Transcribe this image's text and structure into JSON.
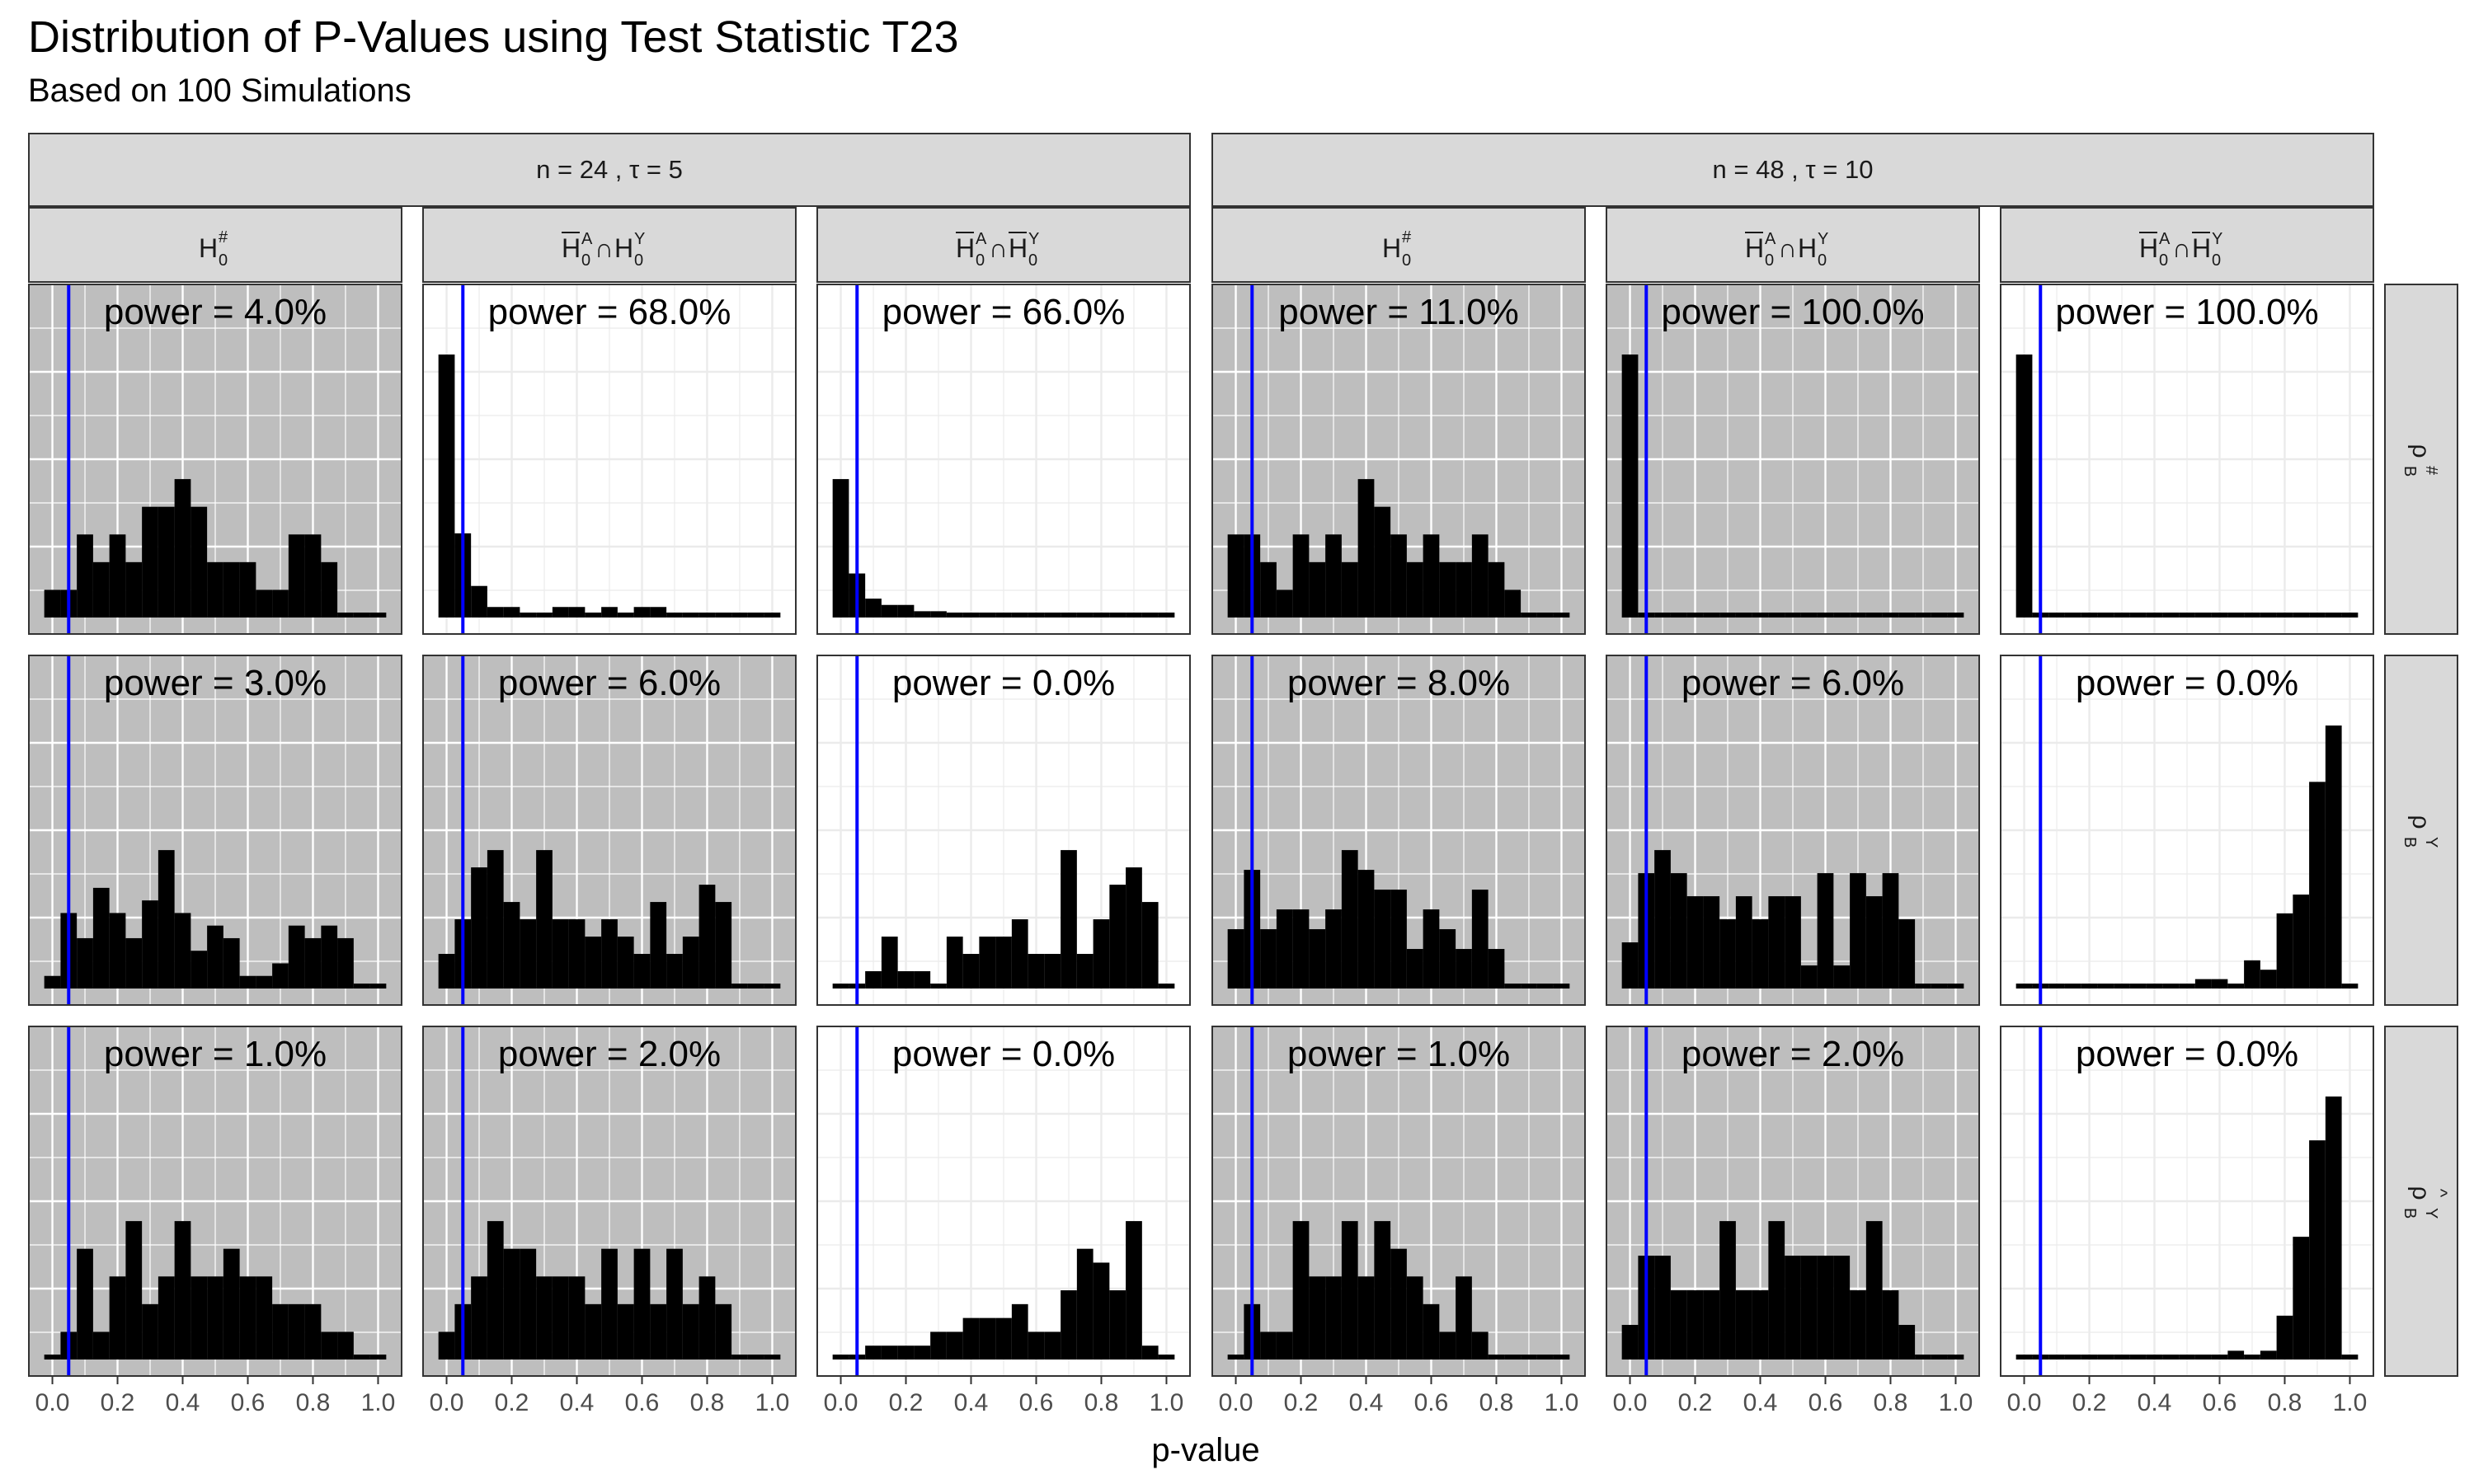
{
  "chart_data": {
    "type": "bar",
    "title": "Distribution of P-Values using Test Statistic T23",
    "subtitle": "Based on 100 Simulations",
    "xlabel": "p-value",
    "xlim": [
      0,
      1
    ],
    "x_ticks": [
      "0.0",
      "0.2",
      "0.4",
      "0.6",
      "0.8",
      "1.0"
    ],
    "bin_width": 0.05,
    "bin_centers": [
      0.0,
      0.05,
      0.1,
      0.15,
      0.2,
      0.25,
      0.3,
      0.35,
      0.4,
      0.45,
      0.5,
      0.55,
      0.6,
      0.65,
      0.7,
      0.75,
      0.8,
      0.85,
      0.9,
      0.95,
      1.0
    ],
    "reference_line": {
      "x": 0.05,
      "color": "#0000ff"
    },
    "bar_color": "#000000",
    "highlight_color": "#bebebe",
    "grid": true,
    "group_headers": [
      {
        "label": "n = 24 , τ = 5"
      },
      {
        "label": "n = 48 , τ = 10"
      }
    ],
    "columns": [
      {
        "group": 0,
        "label": "H0#"
      },
      {
        "group": 0,
        "label": "H̄0A∩H0Y"
      },
      {
        "group": 0,
        "label": "H̄0A∩H̄0Y"
      },
      {
        "group": 1,
        "label": "H0#"
      },
      {
        "group": 1,
        "label": "H̄0A∩H0Y"
      },
      {
        "group": 1,
        "label": "H̄0A∩H̄0Y"
      }
    ],
    "rows": [
      {
        "label": "ρB#"
      },
      {
        "label": "ρBY"
      },
      {
        "label": "ρ̂BY"
      }
    ],
    "panels": [
      {
        "row": 0,
        "col": 0,
        "power": "power = 4.0%",
        "highlight": true,
        "counts": [
          1,
          1,
          3,
          2,
          3,
          2,
          4,
          4,
          5,
          4,
          2,
          2,
          2,
          1,
          1,
          3,
          3,
          2,
          0,
          0,
          0
        ]
      },
      {
        "row": 0,
        "col": 1,
        "power": "power = 68.0%",
        "highlight": false,
        "counts": [
          25,
          8,
          3,
          1,
          1,
          0,
          0,
          1,
          1,
          0,
          1,
          0,
          1,
          1,
          0,
          0,
          0,
          0,
          0,
          0,
          0
        ]
      },
      {
        "row": 0,
        "col": 2,
        "power": "power = 66.0%",
        "highlight": false,
        "counts": [
          22,
          7,
          3,
          2,
          2,
          1,
          1,
          0,
          0,
          0,
          0,
          0,
          0,
          0,
          0,
          0,
          0,
          0,
          0,
          0,
          0
        ]
      },
      {
        "row": 0,
        "col": 3,
        "power": "power = 11.0%",
        "highlight": true,
        "counts": [
          3,
          3,
          2,
          1,
          3,
          2,
          3,
          2,
          5,
          4,
          3,
          2,
          3,
          2,
          2,
          3,
          2,
          1,
          0,
          0,
          0
        ]
      },
      {
        "row": 0,
        "col": 4,
        "power": "power = 100.0%",
        "highlight": true,
        "counts": [
          100,
          0,
          0,
          0,
          0,
          0,
          0,
          0,
          0,
          0,
          0,
          0,
          0,
          0,
          0,
          0,
          0,
          0,
          0,
          0,
          0
        ]
      },
      {
        "row": 0,
        "col": 5,
        "power": "power = 100.0%",
        "highlight": false,
        "counts": [
          100,
          0,
          0,
          0,
          0,
          0,
          0,
          0,
          0,
          0,
          0,
          0,
          0,
          0,
          0,
          0,
          0,
          0,
          0,
          0,
          0
        ]
      },
      {
        "row": 1,
        "col": 0,
        "power": "power = 3.0%",
        "highlight": true,
        "counts": [
          1,
          6,
          4,
          8,
          6,
          4,
          7,
          11,
          6,
          3,
          5,
          4,
          1,
          1,
          2,
          5,
          4,
          5,
          4,
          0,
          0
        ]
      },
      {
        "row": 1,
        "col": 1,
        "power": "power = 6.0%",
        "highlight": true,
        "counts": [
          2,
          4,
          7,
          8,
          5,
          4,
          8,
          4,
          4,
          3,
          4,
          3,
          2,
          5,
          2,
          3,
          6,
          5,
          0,
          0,
          0
        ]
      },
      {
        "row": 1,
        "col": 2,
        "power": "power = 0.0%",
        "highlight": false,
        "counts": [
          0,
          0,
          1,
          3,
          1,
          1,
          0,
          3,
          2,
          3,
          3,
          4,
          2,
          2,
          8,
          2,
          4,
          6,
          7,
          5,
          0
        ]
      },
      {
        "row": 1,
        "col": 3,
        "power": "power = 8.0%",
        "highlight": true,
        "counts": [
          3,
          6,
          3,
          4,
          4,
          3,
          4,
          7,
          6,
          5,
          5,
          2,
          4,
          3,
          2,
          5,
          2,
          0,
          0,
          0,
          0
        ]
      },
      {
        "row": 1,
        "col": 4,
        "power": "power = 6.0%",
        "highlight": true,
        "counts": [
          2,
          5,
          6,
          5,
          4,
          4,
          3,
          4,
          3,
          4,
          4,
          1,
          5,
          1,
          5,
          4,
          5,
          3,
          0,
          0,
          0
        ]
      },
      {
        "row": 1,
        "col": 5,
        "power": "power = 0.0%",
        "highlight": false,
        "counts": [
          0,
          0,
          0,
          0,
          0,
          0,
          0,
          0,
          0,
          0,
          0,
          1,
          1,
          0,
          3,
          2,
          8,
          10,
          22,
          28,
          0
        ]
      },
      {
        "row": 2,
        "col": 0,
        "power": "power = 1.0%",
        "highlight": true,
        "counts": [
          0,
          1,
          4,
          1,
          3,
          5,
          2,
          3,
          5,
          3,
          3,
          4,
          3,
          3,
          2,
          2,
          2,
          1,
          1,
          0,
          0
        ]
      },
      {
        "row": 2,
        "col": 1,
        "power": "power = 2.0%",
        "highlight": true,
        "counts": [
          1,
          2,
          3,
          5,
          4,
          4,
          3,
          3,
          3,
          2,
          4,
          2,
          4,
          2,
          4,
          2,
          3,
          2,
          0,
          0,
          0
        ]
      },
      {
        "row": 2,
        "col": 2,
        "power": "power = 0.0%",
        "highlight": false,
        "counts": [
          0,
          0,
          1,
          1,
          1,
          1,
          2,
          2,
          3,
          3,
          3,
          4,
          2,
          2,
          5,
          8,
          7,
          5,
          10,
          1,
          0
        ]
      },
      {
        "row": 2,
        "col": 3,
        "power": "power = 1.0%",
        "highlight": true,
        "counts": [
          0,
          2,
          1,
          1,
          5,
          3,
          3,
          5,
          3,
          5,
          4,
          3,
          2,
          1,
          3,
          1,
          0,
          0,
          0,
          0,
          0
        ]
      },
      {
        "row": 2,
        "col": 4,
        "power": "power = 2.0%",
        "highlight": true,
        "counts": [
          1,
          3,
          3,
          2,
          2,
          2,
          4,
          2,
          2,
          4,
          3,
          3,
          3,
          3,
          2,
          4,
          2,
          1,
          0,
          0,
          0
        ]
      },
      {
        "row": 2,
        "col": 5,
        "power": "power = 0.0%",
        "highlight": false,
        "counts": [
          0,
          0,
          0,
          0,
          0,
          0,
          0,
          0,
          0,
          0,
          0,
          0,
          0,
          1,
          0,
          1,
          5,
          14,
          25,
          30,
          0
        ]
      }
    ]
  }
}
